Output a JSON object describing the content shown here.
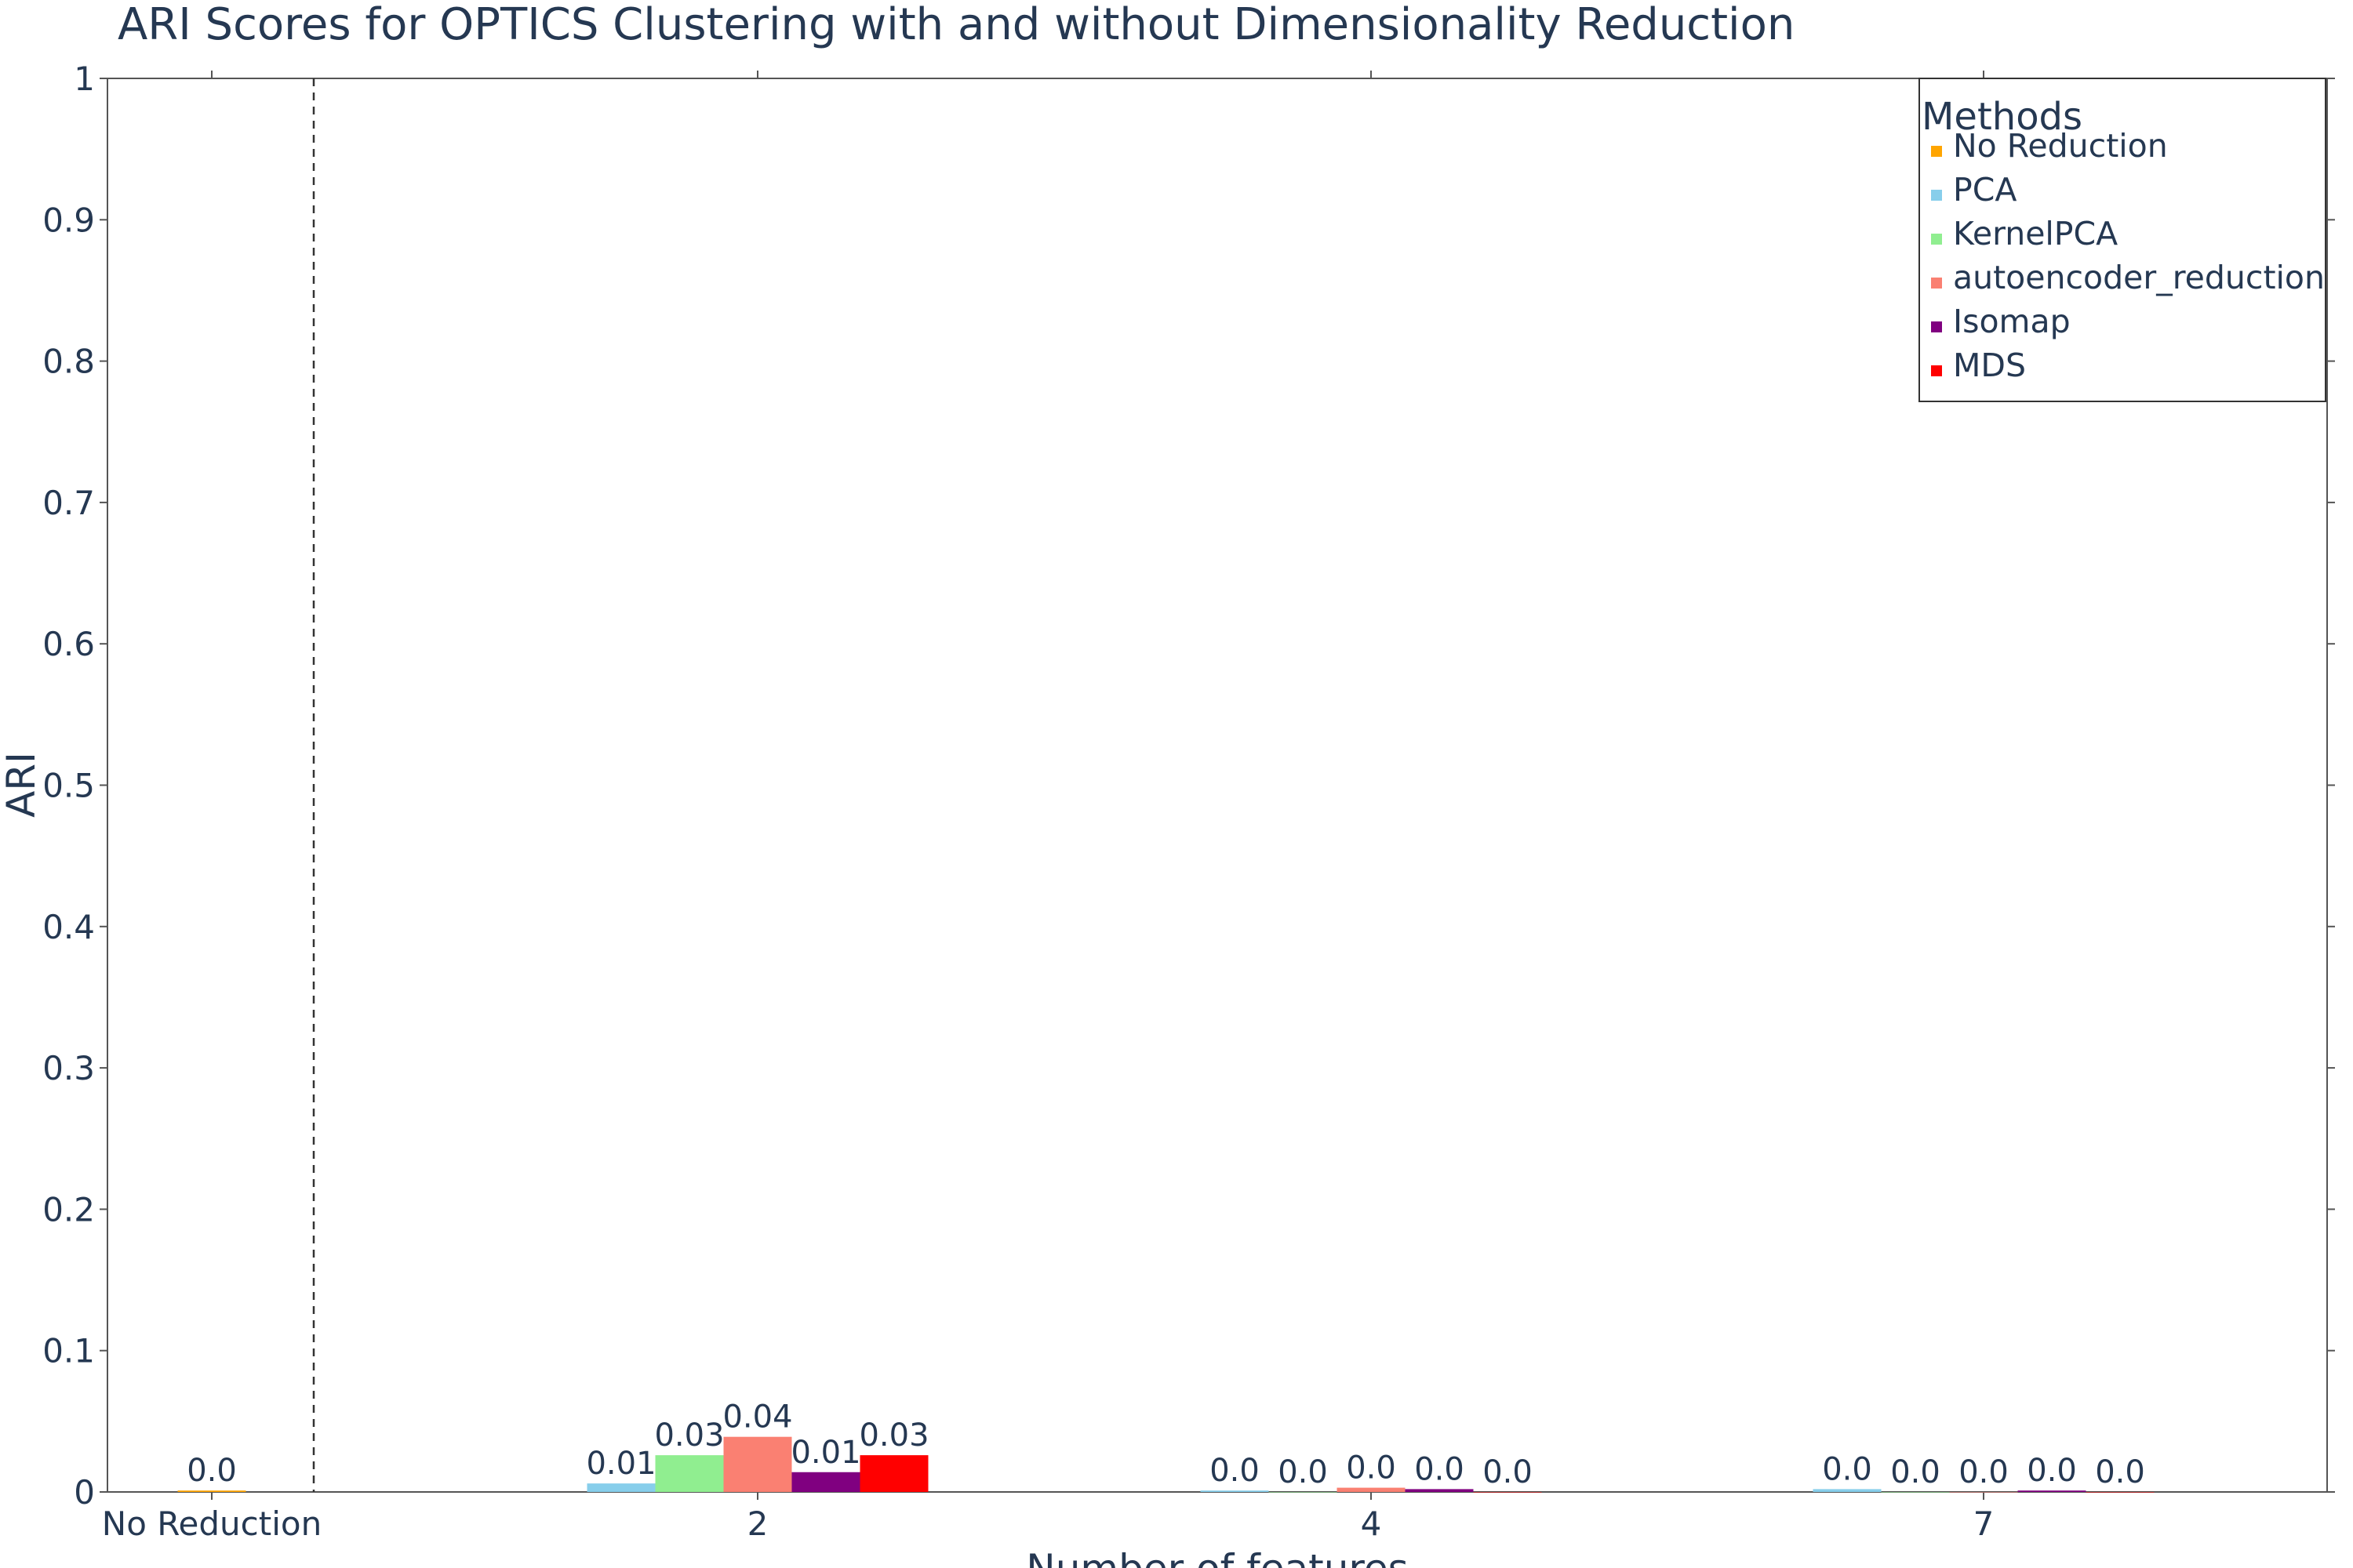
{
  "chart_data": {
    "type": "bar",
    "title": "ARI Scores for OPTICS Clustering with and without Dimensionality Reduction",
    "xlabel": "Number of features",
    "ylabel": "ARI",
    "ylim": [
      0,
      1
    ],
    "yticks": [
      "0",
      "0.1",
      "0.2",
      "0.3",
      "0.4",
      "0.5",
      "0.6",
      "0.7",
      "0.8",
      "0.9",
      "1"
    ],
    "categories": [
      "No Reduction",
      "2",
      "4",
      "7"
    ],
    "grid": false,
    "separator_after_first_category": true,
    "legend": {
      "title": "Methods",
      "position": "top-right"
    },
    "series": [
      {
        "name": "No Reduction",
        "color": "#ffa500",
        "values": [
          0.001,
          null,
          null,
          null
        ],
        "labels": [
          "0.0",
          null,
          null,
          null
        ]
      },
      {
        "name": "PCA",
        "color": "#87ceeb",
        "values": [
          null,
          0.006,
          0.001,
          0.002
        ],
        "labels": [
          null,
          "0.01",
          "0.0",
          "0.0"
        ]
      },
      {
        "name": "KernelPCA",
        "color": "#90ee90",
        "values": [
          null,
          0.026,
          0.0,
          0.0
        ],
        "labels": [
          null,
          "0.03",
          "0.0",
          "0.0"
        ]
      },
      {
        "name": "autoencoder_reduction",
        "color": "#fa8072",
        "values": [
          null,
          0.039,
          0.003,
          0.0
        ],
        "labels": [
          null,
          "0.04",
          "0.0",
          "0.0"
        ]
      },
      {
        "name": "Isomap",
        "color": "#800080",
        "values": [
          null,
          0.014,
          0.002,
          0.001
        ],
        "labels": [
          null,
          "0.01",
          "0.0",
          "0.0"
        ]
      },
      {
        "name": "MDS",
        "color": "#ff0000",
        "values": [
          null,
          0.026,
          0.0,
          0.0
        ],
        "labels": [
          null,
          "0.03",
          "0.0",
          "0.0"
        ]
      }
    ]
  }
}
